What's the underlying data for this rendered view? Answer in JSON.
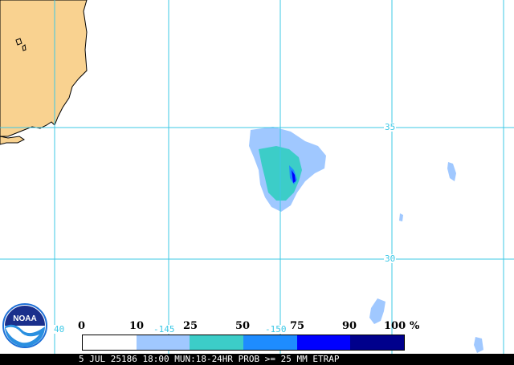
{
  "map": {
    "colors": {
      "land": "#f9d290",
      "grid": "#3cc8e6",
      "band_10_25": "#a0c8ff",
      "band_25_50": "#3ccdc8",
      "band_50_75": "#1e8cff",
      "band_75_90": "#0000ff",
      "band_90_100": "#00008c"
    },
    "grid_labels": {
      "lat_35": "35",
      "lat_30": "30",
      "lon_145": "-145",
      "lon_150": "-150",
      "lon_140": "40"
    }
  },
  "legend": {
    "ticks": [
      "0",
      "10",
      "25",
      "50",
      "75",
      "90",
      "100"
    ],
    "unit": "%",
    "segment_colors": [
      "#ffffff",
      "#a0c8ff",
      "#3ccdc8",
      "#1e8cff",
      "#0000ff",
      "#00008c"
    ]
  },
  "status": {
    "text": "5 JUL 25186 18:00 MUN:18-24HR PROB >= 25 MM ETRAP"
  },
  "logo": {
    "text": "NOAA",
    "icon": "noaa-logo-icon"
  }
}
